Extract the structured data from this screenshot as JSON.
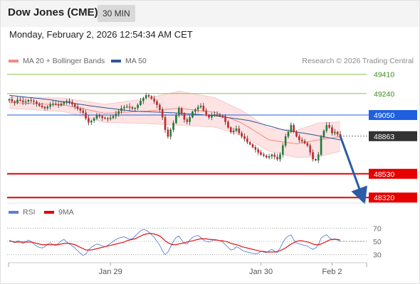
{
  "header": {
    "title": "Dow Jones (CME)",
    "timeframe": "30 MIN",
    "datetime": "Monday, February 2, 2026 12:54:34 AM CET"
  },
  "legend": {
    "bollinger": {
      "label": "MA 20 + Bollinger Bands",
      "color": "#f28b82"
    },
    "ma50": {
      "label": "MA 50",
      "color": "#2f5597"
    },
    "rsi": {
      "label": "RSI",
      "color": "#5b7fd6"
    },
    "rsi_ma": {
      "label": "9MA",
      "color": "#e00000"
    }
  },
  "copyright": "Research © 2026 Trading Central",
  "colors": {
    "up": "#1a7f3c",
    "down": "#c62828",
    "green_level": "#8bc34a",
    "blue_level": "#1f5fe0",
    "red_level": "#e60000",
    "arrow": "#2a5ca8",
    "dark_label": "#333333"
  },
  "chart_data": [
    {
      "type": "candlestick",
      "ylim": [
        48290,
        49490
      ],
      "x_labels": [
        "Jan 29",
        "Jan 30",
        "Feb 2"
      ],
      "levels": [
        {
          "value": 49410,
          "label": "49410",
          "kind": "green"
        },
        {
          "value": 49240,
          "label": "49240",
          "kind": "green"
        },
        {
          "value": 49050,
          "label": "49050",
          "kind": "blue"
        },
        {
          "value": 48863,
          "label": "48863",
          "kind": "current"
        },
        {
          "value": 48530,
          "label": "48530",
          "kind": "red"
        },
        {
          "value": 48320,
          "label": "48320",
          "kind": "red"
        }
      ],
      "close": [
        49190,
        49172,
        49160,
        49185,
        49178,
        49165,
        49170,
        49182,
        49176,
        49168,
        49150,
        49132,
        49120,
        49110,
        49125,
        49142,
        49150,
        49145,
        49135,
        49150,
        49168,
        49175,
        49165,
        49145,
        49125,
        49105,
        49090,
        49070,
        49020,
        48985,
        49000,
        49020,
        49045,
        49040,
        49025,
        49020,
        49015,
        49025,
        49040,
        49060,
        49085,
        49110,
        49120,
        49125,
        49118,
        49108,
        49112,
        49140,
        49175,
        49200,
        49225,
        49215,
        49195,
        49170,
        49140,
        49100,
        49030,
        48920,
        48860,
        48920,
        48980,
        49050,
        49110,
        49060,
        49010,
        48990,
        49030,
        49080,
        49100,
        49120,
        49130,
        49090,
        49050,
        49030,
        49045,
        49055,
        49050,
        49040,
        49030,
        48990,
        48940,
        48900,
        48910,
        48930,
        48890,
        48860,
        48840,
        48810,
        48790,
        48765,
        48745,
        48720,
        48700,
        48690,
        48675,
        48685,
        48700,
        48680,
        48660,
        48700,
        48780,
        48860,
        48900,
        48960,
        48900,
        48860,
        48830,
        48820,
        48800,
        48780,
        48720,
        48660,
        48650,
        48700,
        48860,
        48910,
        48960,
        48940,
        48890,
        48900,
        48880,
        48863
      ],
      "x_label_index": [
        37,
        92,
        118
      ],
      "bb_center_points": [
        [
          0,
          49160
        ],
        [
          20,
          49140
        ],
        [
          35,
          49065
        ],
        [
          50,
          49085
        ],
        [
          62,
          49110
        ],
        [
          75,
          49075
        ],
        [
          85,
          48980
        ],
        [
          95,
          48830
        ],
        [
          105,
          48795
        ],
        [
          113,
          48830
        ],
        [
          121,
          48860
        ]
      ],
      "bb_half_width_points": [
        [
          0,
          50
        ],
        [
          20,
          60
        ],
        [
          35,
          80
        ],
        [
          50,
          110
        ],
        [
          62,
          150
        ],
        [
          75,
          130
        ],
        [
          85,
          110
        ],
        [
          95,
          100
        ],
        [
          105,
          120
        ],
        [
          113,
          150
        ],
        [
          121,
          130
        ]
      ],
      "ma50_points": [
        [
          0,
          49225
        ],
        [
          15,
          49185
        ],
        [
          30,
          49130
        ],
        [
          45,
          49085
        ],
        [
          60,
          49070
        ],
        [
          75,
          49045
        ],
        [
          88,
          49000
        ],
        [
          100,
          48920
        ],
        [
          110,
          48880
        ],
        [
          121,
          48830
        ]
      ],
      "forecast_arrow": {
        "from": [
          121,
          48863
        ],
        "to": [
          129,
          48330
        ]
      }
    },
    {
      "type": "line",
      "ylim": [
        20,
        80
      ],
      "tick_labels": [
        "70",
        "50",
        "30"
      ],
      "tick_values": [
        70,
        50,
        30
      ],
      "rsi": [
        52,
        50,
        48,
        51,
        50,
        47,
        49,
        52,
        50,
        46,
        43,
        41,
        40,
        42,
        46,
        48,
        45,
        44,
        47,
        51,
        53,
        49,
        46,
        43,
        40,
        36,
        32,
        29,
        31,
        37,
        41,
        44,
        46,
        45,
        43,
        42,
        44,
        47,
        50,
        53,
        55,
        56,
        57,
        55,
        53,
        54,
        58,
        62,
        66,
        68,
        67,
        64,
        60,
        56,
        50,
        44,
        36,
        30,
        34,
        42,
        50,
        56,
        58,
        52,
        47,
        46,
        52,
        56,
        58,
        59,
        56,
        52,
        50,
        49,
        51,
        53,
        52,
        51,
        49,
        45,
        41,
        37,
        38,
        42,
        40,
        37,
        35,
        34,
        33,
        32,
        31,
        32,
        35,
        34,
        33,
        36,
        38,
        35,
        33,
        40,
        48,
        55,
        58,
        60,
        52,
        48,
        46,
        45,
        44,
        43,
        40,
        38,
        40,
        45,
        55,
        58,
        60,
        56,
        52,
        54,
        52,
        50
      ],
      "rsi_ma": [
        50,
        50,
        49,
        49,
        49,
        49,
        49,
        49,
        49,
        48,
        47,
        46,
        45,
        45,
        45,
        45,
        45,
        45,
        45,
        46,
        47,
        47,
        47,
        46,
        45,
        43,
        41,
        39,
        37,
        37,
        37,
        38,
        39,
        40,
        41,
        42,
        43,
        44,
        45,
        46,
        47,
        48,
        49,
        51,
        52,
        53,
        54,
        56,
        58,
        60,
        61,
        62,
        62,
        61,
        60,
        58,
        55,
        51,
        48,
        46,
        45,
        45,
        46,
        47,
        48,
        49,
        50,
        51,
        52,
        53,
        54,
        54,
        54,
        53,
        53,
        52,
        52,
        51,
        51,
        50,
        49,
        47,
        46,
        45,
        44,
        42,
        41,
        40,
        39,
        38,
        37,
        36,
        35,
        35,
        34,
        34,
        34,
        34,
        35,
        36,
        38,
        40,
        43,
        46,
        48,
        50,
        51,
        51,
        50,
        49,
        48,
        46,
        45,
        45,
        46,
        48,
        50,
        52,
        53,
        53,
        53,
        52
      ]
    }
  ]
}
